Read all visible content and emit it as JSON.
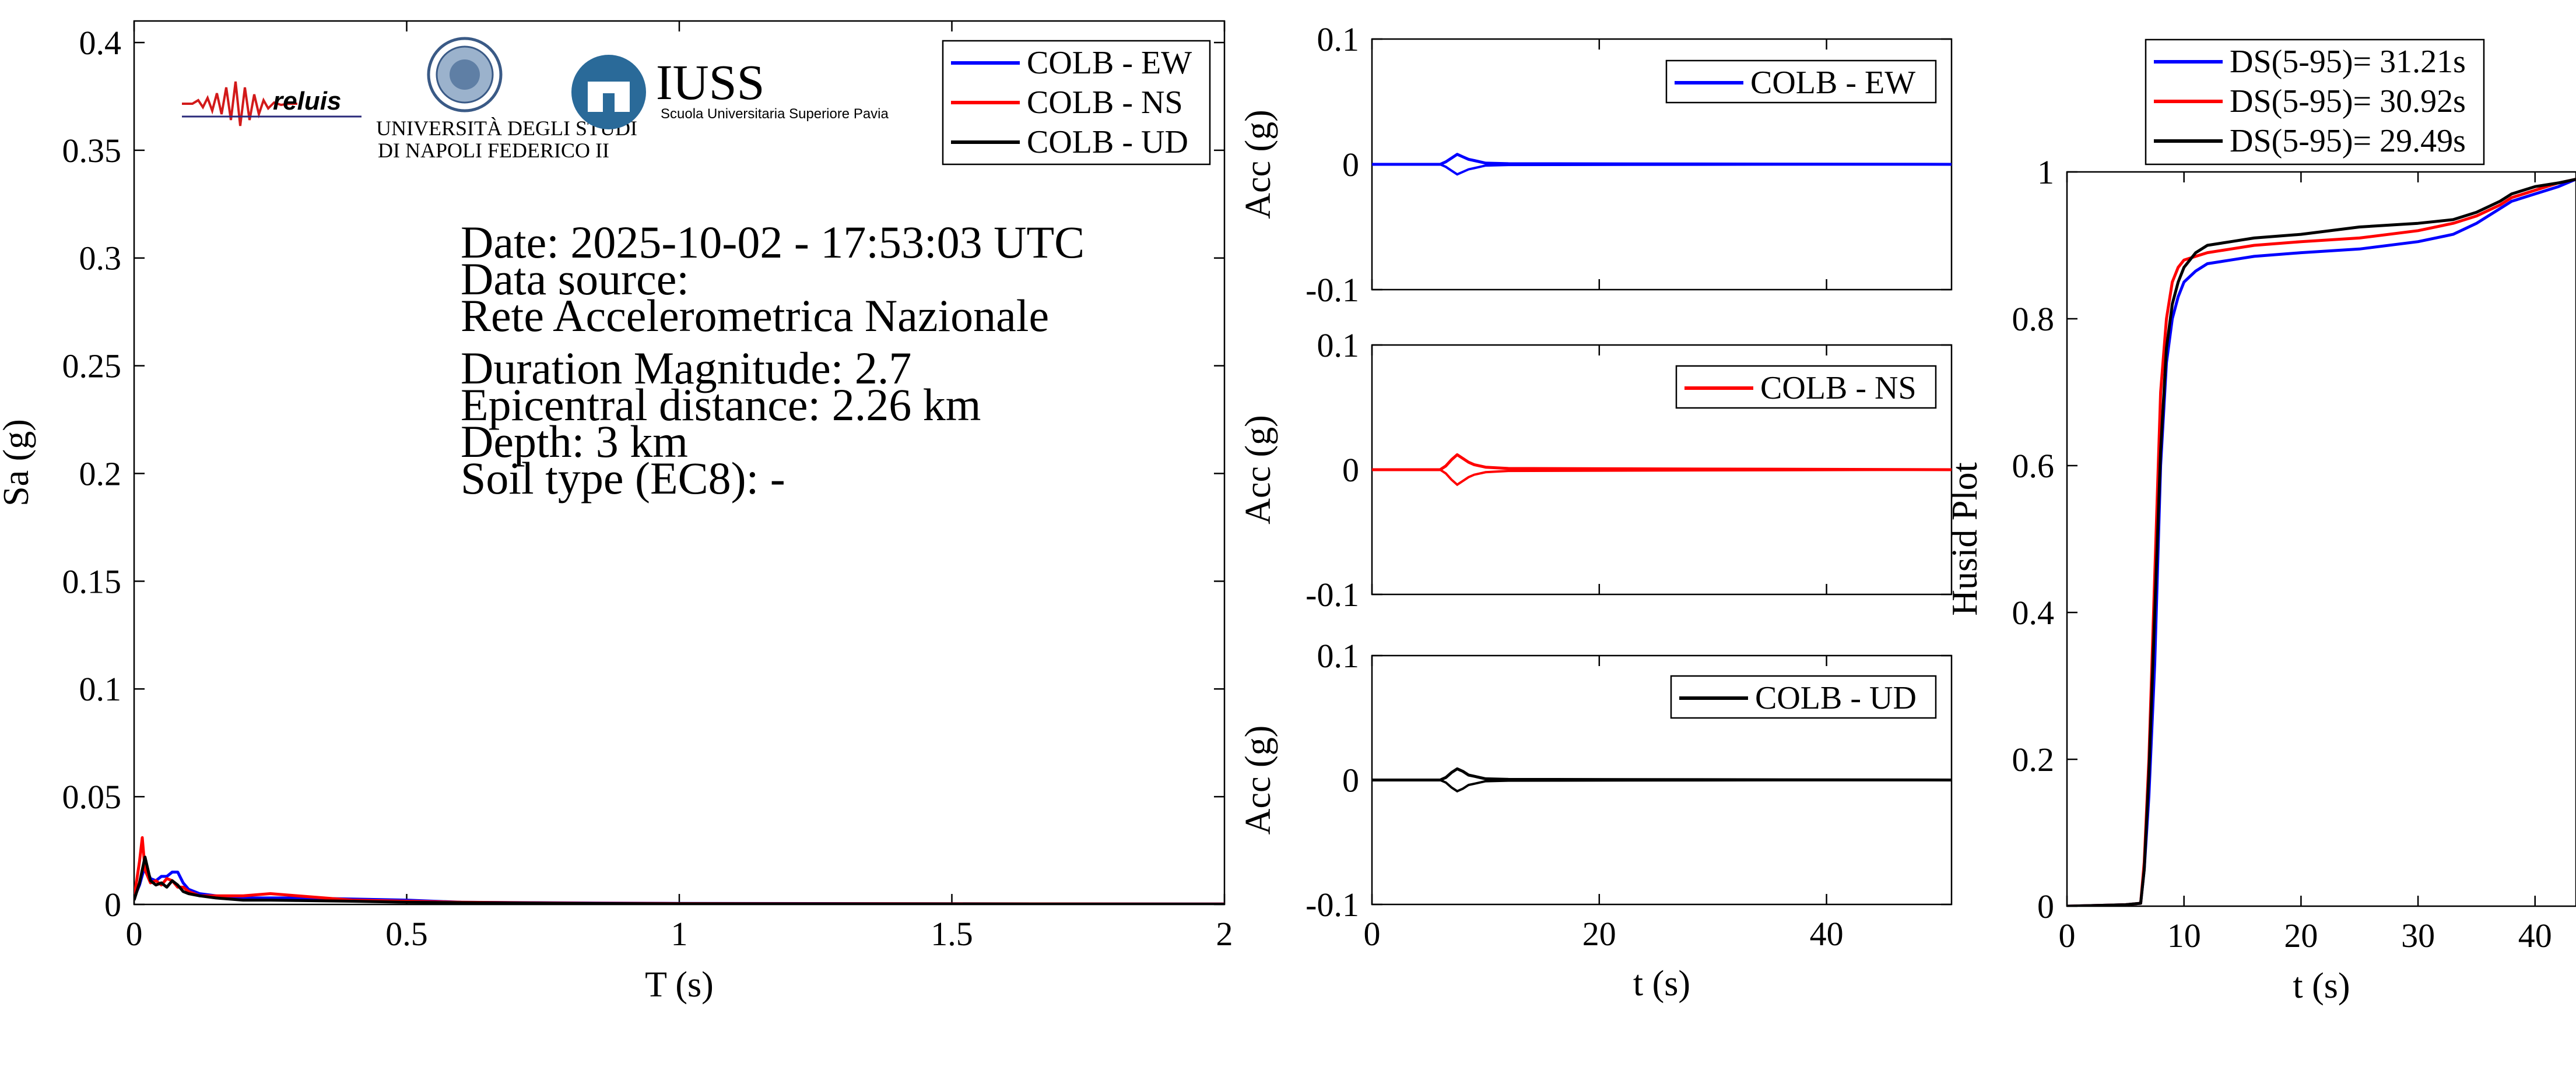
{
  "colors": {
    "EW": "#0000ff",
    "NS": "#ff0000",
    "UD": "#000000",
    "iuss": "#2a6a99",
    "reluis": "#2a2a7a"
  },
  "logos": [
    {
      "name": "reluis",
      "text": "reluis"
    },
    {
      "name": "unina",
      "line1": "UNIVERSITÀ DEGLI STUDI",
      "line2": "DI NAPOLI FEDERICO II"
    },
    {
      "name": "iuss",
      "text": "IUSS",
      "sub": "Scuola Universitaria Superiore Pavia"
    }
  ],
  "info": {
    "date": "Date: 2025-10-02 - 17:53:03 UTC",
    "source_label": "Data source:",
    "source_name": "Rete Accelerometrica Nazionale",
    "magnitude": "Duration Magnitude: 2.7",
    "distance": "Epicentral distance: 2.26 km",
    "depth": "Depth: 3 km",
    "soil": "Soil type (EC8): -"
  },
  "chart_data": [
    {
      "id": "spectrum",
      "type": "line",
      "xlabel": "T (s)",
      "ylabel": "Sa (g)",
      "xlim": [
        0,
        2
      ],
      "ylim": [
        0,
        0.41
      ],
      "xticks": [
        0,
        0.5,
        1,
        1.5,
        2
      ],
      "xtick_labels": [
        "0",
        "0.5",
        "1",
        "1.5",
        "2"
      ],
      "yticks": [
        0,
        0.05,
        0.1,
        0.15,
        0.2,
        0.25,
        0.3,
        0.35,
        0.4
      ],
      "ytick_labels": [
        "0",
        "0.05",
        "0.1",
        "0.15",
        "0.2",
        "0.25",
        "0.3",
        "0.35",
        "0.4"
      ],
      "legend": "top-right",
      "series": [
        {
          "name": "COLB - EW",
          "color": "#0000ff",
          "x": [
            0,
            0.01,
            0.02,
            0.03,
            0.04,
            0.05,
            0.06,
            0.07,
            0.08,
            0.09,
            0.1,
            0.12,
            0.15,
            0.2,
            0.25,
            0.3,
            0.4,
            0.5,
            0.6,
            0.8,
            1.0,
            1.5,
            2.0
          ],
          "y": [
            0.003,
            0.009,
            0.018,
            0.012,
            0.011,
            0.013,
            0.013,
            0.015,
            0.015,
            0.01,
            0.007,
            0.005,
            0.004,
            0.003,
            0.003,
            0.003,
            0.0025,
            0.002,
            0.001,
            0.0007,
            0.0005,
            0.0003,
            0.0002
          ]
        },
        {
          "name": "COLB - NS",
          "color": "#ff0000",
          "x": [
            0,
            0.01,
            0.015,
            0.02,
            0.03,
            0.04,
            0.05,
            0.06,
            0.07,
            0.08,
            0.09,
            0.1,
            0.12,
            0.15,
            0.2,
            0.25,
            0.3,
            0.4,
            0.5,
            0.6,
            0.8,
            1.0,
            1.5,
            2.0
          ],
          "y": [
            0.003,
            0.02,
            0.031,
            0.016,
            0.01,
            0.011,
            0.009,
            0.012,
            0.011,
            0.008,
            0.008,
            0.006,
            0.004,
            0.004,
            0.004,
            0.005,
            0.004,
            0.002,
            0.0015,
            0.001,
            0.0006,
            0.0004,
            0.0003,
            0.0002
          ]
        },
        {
          "name": "COLB - UD",
          "color": "#000000",
          "x": [
            0,
            0.01,
            0.02,
            0.03,
            0.04,
            0.05,
            0.06,
            0.07,
            0.08,
            0.09,
            0.1,
            0.12,
            0.15,
            0.2,
            0.25,
            0.3,
            0.4,
            0.5,
            0.6,
            0.8,
            1.0,
            1.5,
            2.0
          ],
          "y": [
            0.002,
            0.01,
            0.022,
            0.011,
            0.009,
            0.01,
            0.008,
            0.011,
            0.009,
            0.006,
            0.005,
            0.004,
            0.003,
            0.002,
            0.002,
            0.0018,
            0.0015,
            0.001,
            0.0008,
            0.0005,
            0.0003,
            0.0002,
            0.0001
          ]
        }
      ]
    },
    {
      "id": "acc-ew",
      "type": "line",
      "xlabel": "",
      "ylabel": "Acc (g)",
      "xlim": [
        0,
        51
      ],
      "ylim": [
        -0.1,
        0.1
      ],
      "xticks": [
        0,
        20,
        40
      ],
      "yticks": [
        -0.1,
        0,
        0.1
      ],
      "ytick_labels": [
        "-0.1",
        "0",
        "0.1"
      ],
      "legend": "top-right",
      "series": [
        {
          "name": "COLB - EW",
          "color": "#0000ff",
          "x": [
            0,
            6,
            6.5,
            7,
            7.5,
            8,
            8.5,
            9,
            10,
            12,
            51
          ],
          "y": [
            0,
            0,
            0.002,
            0.005,
            0.008,
            0.006,
            0.004,
            0.003,
            0.001,
            0.0005,
            0
          ]
        }
      ]
    },
    {
      "id": "acc-ns",
      "type": "line",
      "xlabel": "",
      "ylabel": "Acc (g)",
      "xlim": [
        0,
        51
      ],
      "ylim": [
        -0.1,
        0.1
      ],
      "xticks": [
        0,
        20,
        40
      ],
      "yticks": [
        -0.1,
        0,
        0.1
      ],
      "ytick_labels": [
        "-0.1",
        "0",
        "0.1"
      ],
      "legend": "top-right",
      "series": [
        {
          "name": "COLB - NS",
          "color": "#ff0000",
          "x": [
            0,
            6,
            6.5,
            7,
            7.5,
            8,
            8.5,
            9,
            10,
            12,
            51
          ],
          "y": [
            0,
            0,
            0.003,
            0.008,
            0.012,
            0.009,
            0.006,
            0.004,
            0.002,
            0.001,
            0
          ]
        }
      ]
    },
    {
      "id": "acc-ud",
      "type": "line",
      "xlabel": "t (s)",
      "ylabel": "Acc (g)",
      "xlim": [
        0,
        51
      ],
      "ylim": [
        -0.1,
        0.1
      ],
      "xticks": [
        0,
        20,
        40
      ],
      "xtick_labels": [
        "0",
        "20",
        "40"
      ],
      "yticks": [
        -0.1,
        0,
        0.1
      ],
      "ytick_labels": [
        "-0.1",
        "0",
        "0.1"
      ],
      "legend": "top-right",
      "series": [
        {
          "name": "COLB - UD",
          "color": "#000000",
          "x": [
            0,
            6,
            6.5,
            7,
            7.5,
            8,
            8.5,
            9,
            10,
            12,
            51
          ],
          "y": [
            0,
            0,
            0.002,
            0.006,
            0.009,
            0.007,
            0.004,
            0.003,
            0.001,
            0.0005,
            0
          ]
        }
      ]
    },
    {
      "id": "husid",
      "type": "line",
      "xlabel": "t (s)",
      "ylabel": "Husid Plot",
      "xlim": [
        0,
        43.5
      ],
      "ylim": [
        0,
        1
      ],
      "xticks": [
        0,
        10,
        20,
        30,
        40
      ],
      "xtick_labels": [
        "0",
        "10",
        "20",
        "30",
        "40"
      ],
      "yticks": [
        0,
        0.2,
        0.4,
        0.6,
        0.8,
        1
      ],
      "ytick_labels": [
        "0",
        "0.2",
        "0.4",
        "0.6",
        "0.8",
        "1"
      ],
      "legend": "top (outside)",
      "series": [
        {
          "name": "DS(5-95)= 31.21s",
          "color": "#0000ff",
          "x": [
            0,
            5,
            6.3,
            6.6,
            7,
            7.5,
            8,
            8.5,
            9,
            9.5,
            10,
            11,
            12,
            14,
            16,
            20,
            25,
            30,
            33,
            35,
            37,
            38,
            40,
            42,
            43.5
          ],
          "y": [
            0,
            0.002,
            0.004,
            0.05,
            0.15,
            0.33,
            0.6,
            0.74,
            0.8,
            0.83,
            0.85,
            0.865,
            0.875,
            0.88,
            0.885,
            0.89,
            0.895,
            0.905,
            0.915,
            0.93,
            0.95,
            0.96,
            0.97,
            0.98,
            0.99
          ]
        },
        {
          "name": "DS(5-95)= 30.92s",
          "color": "#ff0000",
          "x": [
            0,
            5,
            6.3,
            6.6,
            7,
            7.5,
            8,
            8.5,
            9,
            9.5,
            10,
            11,
            12,
            14,
            16,
            20,
            25,
            30,
            33,
            35,
            37,
            38,
            40,
            42,
            43.5
          ],
          "y": [
            0,
            0.002,
            0.004,
            0.06,
            0.2,
            0.45,
            0.7,
            0.8,
            0.85,
            0.87,
            0.88,
            0.885,
            0.89,
            0.895,
            0.9,
            0.905,
            0.91,
            0.92,
            0.93,
            0.94,
            0.955,
            0.965,
            0.975,
            0.985,
            0.99
          ]
        },
        {
          "name": "DS(5-95)= 29.49s",
          "color": "#000000",
          "x": [
            0,
            5,
            6.3,
            6.6,
            7,
            7.5,
            8,
            8.5,
            9,
            9.5,
            10,
            11,
            12,
            14,
            16,
            20,
            25,
            30,
            33,
            35,
            37,
            38,
            40,
            42,
            43.5
          ],
          "y": [
            0,
            0.002,
            0.004,
            0.05,
            0.18,
            0.4,
            0.62,
            0.76,
            0.82,
            0.85,
            0.87,
            0.89,
            0.9,
            0.905,
            0.91,
            0.915,
            0.925,
            0.93,
            0.935,
            0.945,
            0.96,
            0.97,
            0.98,
            0.985,
            0.99
          ]
        }
      ]
    }
  ]
}
